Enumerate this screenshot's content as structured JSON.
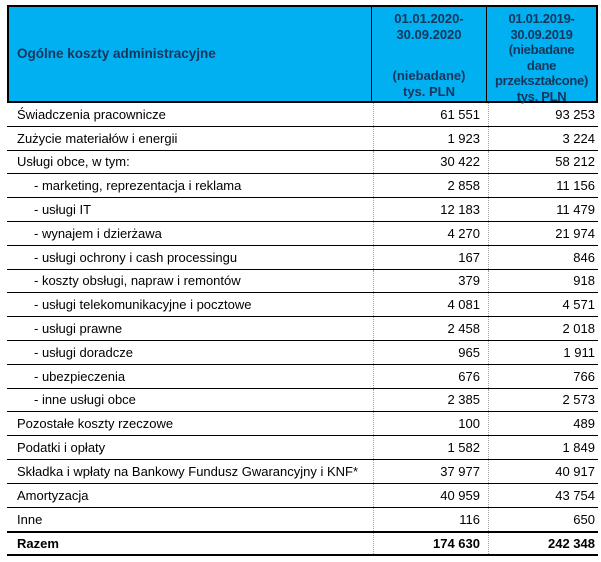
{
  "colors": {
    "header_bg": "#00b0f0",
    "header_text": "#17365d",
    "border_dark": "#000000",
    "body_text": "#000000",
    "divider_gray": "#9e9e9e"
  },
  "header": {
    "title": "Ogólne koszty administracyjne",
    "col_2020": {
      "period": "01.01.2020-\n30.09.2020",
      "note": "(niebadane)\ntys. PLN"
    },
    "col_2019": {
      "text": "01.01.2019-\n30.09.2019\n(niebadane\ndane\nprzekształcone)\ntys. PLN"
    }
  },
  "rows": [
    {
      "label": "Świadczenia pracownicze",
      "v2020": "61 551",
      "v2019": "93 253",
      "indent": false,
      "total": false
    },
    {
      "label": "Zużycie materiałów i energii",
      "v2020": "1 923",
      "v2019": "3 224",
      "indent": false,
      "total": false
    },
    {
      "label": "Usługi obce, w tym:",
      "v2020": "30 422",
      "v2019": "58 212",
      "indent": false,
      "total": false
    },
    {
      "label": "- marketing, reprezentacja i reklama",
      "v2020": "2 858",
      "v2019": "11 156",
      "indent": true,
      "total": false
    },
    {
      "label": "- usługi IT",
      "v2020": "12 183",
      "v2019": "11 479",
      "indent": true,
      "total": false
    },
    {
      "label": "- wynajem i dzierżawa",
      "v2020": "4 270",
      "v2019": "21 974",
      "indent": true,
      "total": false
    },
    {
      "label": "- usługi ochrony i cash processingu",
      "v2020": "167",
      "v2019": "846",
      "indent": true,
      "total": false
    },
    {
      "label": "- koszty obsługi, napraw i remontów",
      "v2020": "379",
      "v2019": "918",
      "indent": true,
      "total": false
    },
    {
      "label": "- usługi telekomunikacyjne i pocztowe",
      "v2020": "4 081",
      "v2019": "4 571",
      "indent": true,
      "total": false
    },
    {
      "label": "- usługi prawne",
      "v2020": "2 458",
      "v2019": "2 018",
      "indent": true,
      "total": false
    },
    {
      "label": "- usługi doradcze",
      "v2020": "965",
      "v2019": "1 911",
      "indent": true,
      "total": false
    },
    {
      "label": "- ubezpieczenia",
      "v2020": "676",
      "v2019": "766",
      "indent": true,
      "total": false
    },
    {
      "label": "- inne usługi obce",
      "v2020": "2 385",
      "v2019": "2 573",
      "indent": true,
      "total": false
    },
    {
      "label": "Pozostałe koszty rzeczowe",
      "v2020": "100",
      "v2019": "489",
      "indent": false,
      "total": false
    },
    {
      "label": "Podatki i opłaty",
      "v2020": "1 582",
      "v2019": "1 849",
      "indent": false,
      "total": false
    },
    {
      "label": "Składka i wpłaty na Bankowy Fundusz Gwarancyjny i KNF*",
      "v2020": "37 977",
      "v2019": "40 917",
      "indent": false,
      "total": false
    },
    {
      "label": "Amortyzacja",
      "v2020": "40 959",
      "v2019": "43 754",
      "indent": false,
      "total": false
    },
    {
      "label": "Inne",
      "v2020": "116",
      "v2019": "650",
      "indent": false,
      "total": false
    },
    {
      "label": "Razem",
      "v2020": "174 630",
      "v2019": "242 348",
      "indent": false,
      "total": true
    }
  ]
}
